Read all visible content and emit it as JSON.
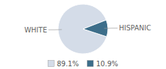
{
  "chart_data": {
    "type": "pie",
    "categories": [
      "WHITE",
      "HISPANIC"
    ],
    "values": [
      89.1,
      10.9
    ],
    "value_labels": [
      "89.1%",
      "10.9%"
    ],
    "colors": [
      "#d4dce8",
      "#3d6e8a"
    ],
    "legend": "bottom"
  }
}
